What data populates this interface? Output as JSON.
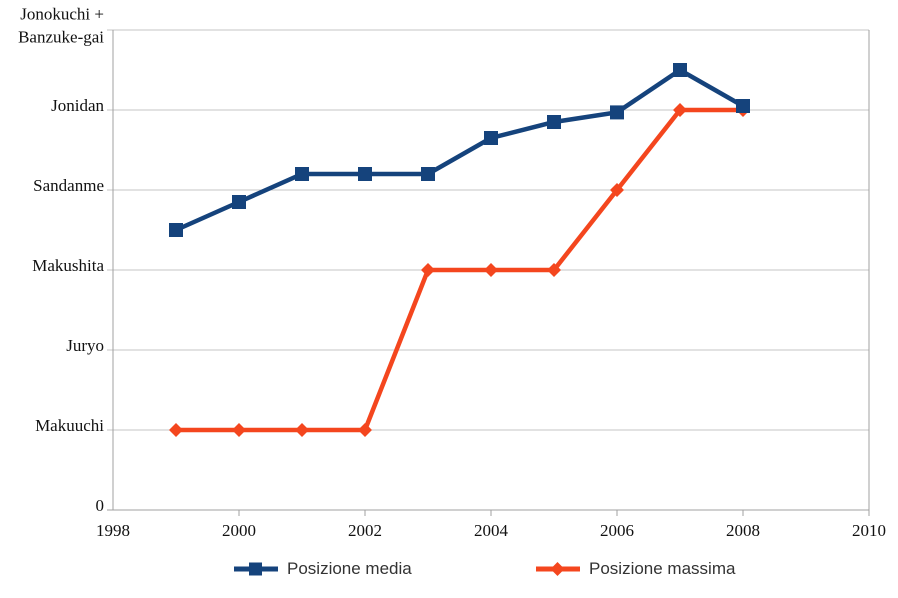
{
  "chart_data": {
    "type": "line",
    "title": "",
    "x": [
      1999,
      2000,
      2001,
      2002,
      2003,
      2004,
      2005,
      2006,
      2007,
      2008
    ],
    "series": [
      {
        "name": "Posizione media",
        "color": "#15437c",
        "marker": "square",
        "values": [
          3.5,
          3.85,
          4.2,
          4.2,
          4.2,
          4.65,
          4.85,
          4.97,
          5.5,
          5.05
        ]
      },
      {
        "name": "Posizione massima",
        "color": "#f4461e",
        "marker": "diamond",
        "values": [
          1,
          1,
          1,
          1,
          3,
          3,
          3,
          4,
          5,
          5
        ]
      }
    ],
    "xlim": [
      1998,
      2010
    ],
    "ylim": [
      0,
      6
    ],
    "x_ticks": [
      "1998",
      "2000",
      "2002",
      "2004",
      "2006",
      "2008",
      "2010"
    ],
    "y_ticks": [
      {
        "value": 0,
        "label": "0"
      },
      {
        "value": 1,
        "label": "Makuuchi"
      },
      {
        "value": 2,
        "label": "Juryo"
      },
      {
        "value": 3,
        "label": "Makushita"
      },
      {
        "value": 4,
        "label": "Sandanme"
      },
      {
        "value": 5,
        "label": "Jonidan"
      },
      {
        "value": 6,
        "label": "Jonokuchi +\nBanzuke-gai"
      }
    ],
    "grid": true,
    "legend_position": "bottom",
    "colors": {
      "gridline": "#c6c6c6",
      "axis": "#a0a0a0",
      "axis_text": "#111111",
      "legend_text": "#333333",
      "background": "#ffffff"
    }
  }
}
